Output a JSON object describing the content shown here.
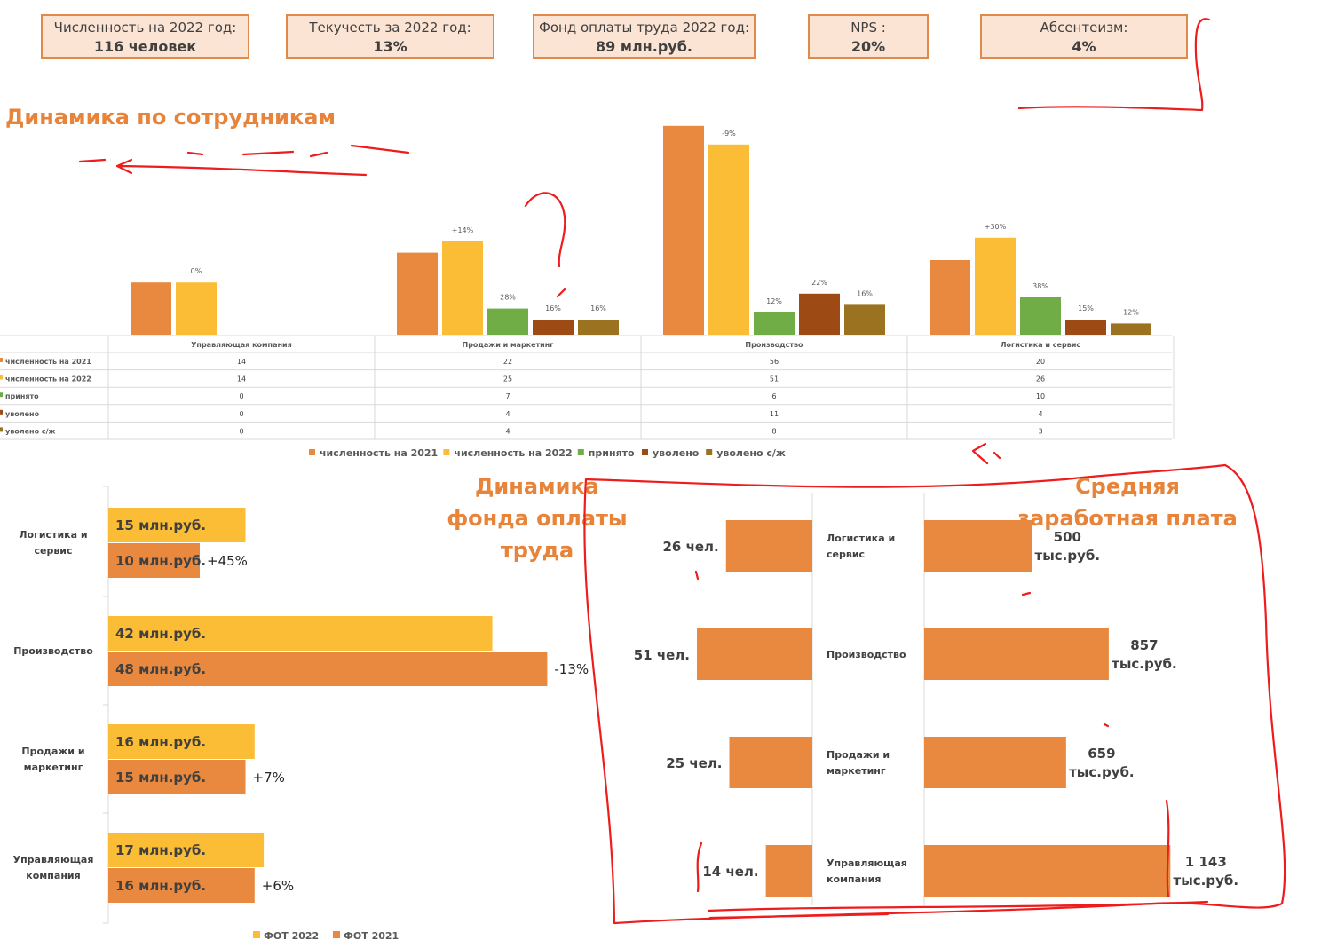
{
  "kpis": [
    {
      "label": "Численность на 2022 год:",
      "value": "116 человек"
    },
    {
      "label": "Текучесть за 2022 год:",
      "value": "13%"
    },
    {
      "label": "Фонд оплаты труда 2022 год:",
      "value": "89 млн.руб."
    },
    {
      "label": "NPS :",
      "value": "20%"
    },
    {
      "label": "Абсентеизм:",
      "value": "4%"
    }
  ],
  "colors": {
    "accent": "#e8833a",
    "c2021": "#e8893f",
    "c2022": "#fbbd35",
    "hired": "#70ad47",
    "fired": "#9e4a14",
    "fired_voluntary": "#9b7220",
    "ink": "#ee1c1c"
  },
  "chart_data": [
    {
      "type": "bar",
      "title": "Динамика по сотрудникам",
      "categories": [
        "Управляющая компания",
        "Продажи и маркетинг",
        "Производство",
        "Логистика и сервис"
      ],
      "series": [
        {
          "name": "численность на 2021",
          "values": [
            14,
            22,
            56,
            20
          ],
          "display": [
            "14",
            "22",
            "56",
            "20"
          ]
        },
        {
          "name": "численность на 2022",
          "values": [
            14,
            25,
            51,
            26
          ],
          "display": [
            "14",
            "25",
            "51",
            "26"
          ]
        },
        {
          "name": "принято",
          "values": [
            0,
            7,
            6,
            10
          ],
          "display": [
            "0",
            "7",
            "6",
            "10"
          ]
        },
        {
          "name": "уволено",
          "values": [
            0,
            4,
            11,
            4
          ],
          "display": [
            "0",
            "4",
            "11",
            "4"
          ]
        },
        {
          "name": "уволено с/ж",
          "values": [
            0,
            4,
            8,
            3
          ],
          "display": [
            "0",
            "4",
            "8",
            "3"
          ]
        }
      ],
      "bar_labels": [
        [
          "",
          "0%",
          "",
          "",
          ""
        ],
        [
          "",
          "+14%",
          "28%",
          "16%",
          "16%"
        ],
        [
          "",
          "-9%",
          "12%",
          "22%",
          "16%"
        ],
        [
          "",
          "+30%",
          "38%",
          "15%",
          "12%"
        ]
      ],
      "legend": "bottom"
    },
    {
      "type": "bar",
      "orientation": "horizontal",
      "title": "Динамика фонда оплаты труда",
      "categories": [
        "Логистика и сервис",
        "Производство",
        "Продажи и маркетинг",
        "Управляющая компания"
      ],
      "series": [
        {
          "name": "ФОТ 2022",
          "values": [
            15,
            42,
            16,
            17
          ]
        },
        {
          "name": "ФОТ 2021",
          "values": [
            10,
            48,
            15,
            16
          ]
        }
      ],
      "value_unit": "млн.руб.",
      "changes": [
        "+45%",
        "-13%",
        "+7%",
        "+6%"
      ],
      "legend": "bottom"
    },
    {
      "type": "bar",
      "orientation": "horizontal",
      "title": "Средняя заработная плата",
      "categories": [
        "Логистика и сервис",
        "Производство",
        "Продажи и маркетинг",
        "Управляющая компания"
      ],
      "headcount": [
        26,
        51,
        25,
        14
      ],
      "headcount_labels": [
        "26 чел.",
        "51 чел.",
        "25 чел.",
        "14 чел."
      ],
      "salary": [
        500,
        857,
        659,
        1143
      ],
      "salary_labels": [
        "500",
        "857",
        "659",
        "1 143"
      ],
      "salary_unit": "тыс.руб.",
      "legend": "bottom"
    }
  ]
}
